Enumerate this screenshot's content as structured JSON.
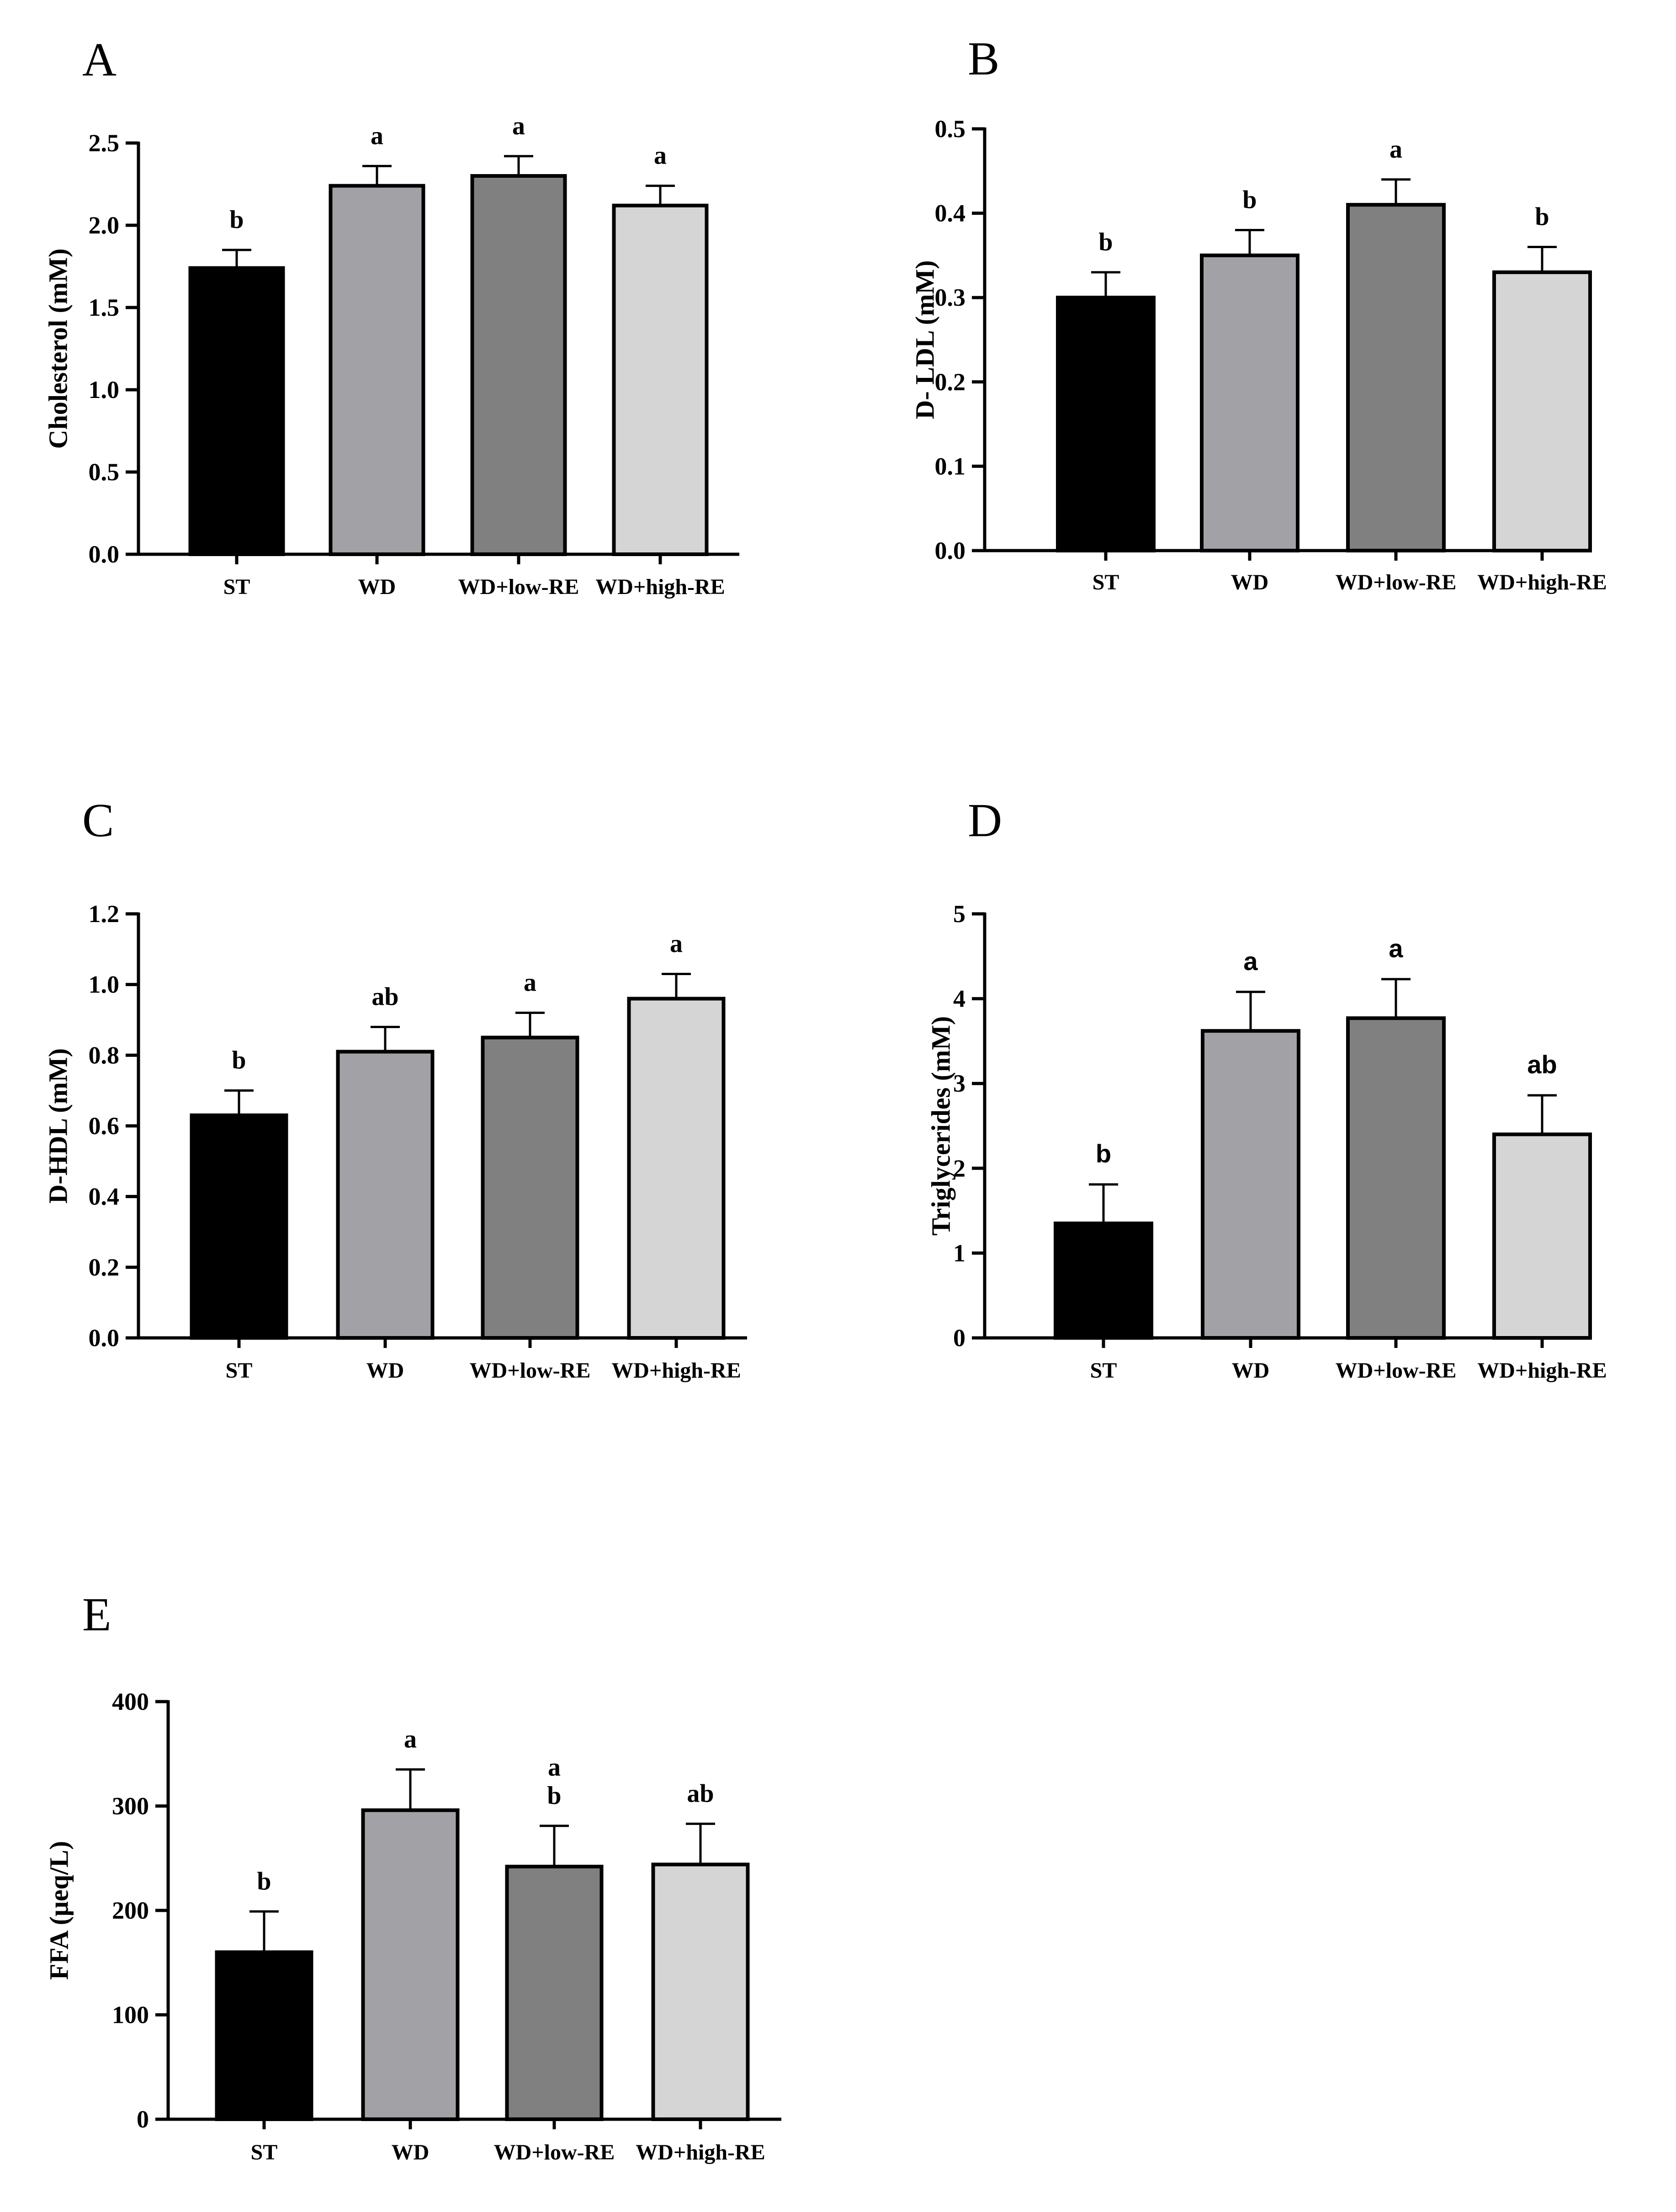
{
  "figure": {
    "colors": {
      "ST": "#000000",
      "WD": "#a2a1a6",
      "WD+low-RE": "#808080",
      "WD+high-RE": "#d5d5d5"
    }
  },
  "chart_data": [
    {
      "id": "A",
      "panel": "A",
      "type": "bar",
      "categories": [
        "ST",
        "WD",
        "WD+low-RE",
        "WD+high-RE"
      ],
      "values": [
        1.74,
        2.24,
        2.3,
        2.12
      ],
      "errors": [
        0.11,
        0.12,
        0.12,
        0.12
      ],
      "significance": [
        "b",
        "a",
        "a",
        "a"
      ],
      "ylabel": "Cholesterol (mM)",
      "ylim": [
        0,
        2.5
      ],
      "yticks": [
        0,
        0.5,
        1.0,
        1.5,
        2.0,
        2.5
      ],
      "ytick_labels": [
        "0.0",
        "0.5",
        "1.0",
        "1.5",
        "2.0",
        "2.5"
      ],
      "sig_font": "serif"
    },
    {
      "id": "B",
      "panel": "B",
      "type": "bar",
      "categories": [
        "ST",
        "WD",
        "WD+low-RE",
        "WD+high-RE"
      ],
      "values": [
        0.3,
        0.35,
        0.41,
        0.33
      ],
      "errors": [
        0.03,
        0.03,
        0.03,
        0.03
      ],
      "significance": [
        "b",
        "b",
        "a",
        "b"
      ],
      "ylabel": "D- LDL (mM)",
      "ylim": [
        0,
        0.5
      ],
      "yticks": [
        0,
        0.1,
        0.2,
        0.3,
        0.4,
        0.5
      ],
      "ytick_labels": [
        "0.0",
        "0.1",
        "0.2",
        "0.3",
        "0.4",
        "0.5"
      ],
      "sig_font": "serif"
    },
    {
      "id": "C",
      "panel": "C",
      "type": "bar",
      "categories": [
        "ST",
        "WD",
        "WD+low-RE",
        "WD+high-RE"
      ],
      "values": [
        0.63,
        0.81,
        0.85,
        0.96
      ],
      "errors": [
        0.07,
        0.07,
        0.07,
        0.07
      ],
      "significance": [
        "b",
        "ab",
        "a",
        "a"
      ],
      "ylabel": "D-HDL (mM)",
      "ylim": [
        0,
        1.2
      ],
      "yticks": [
        0,
        0.2,
        0.4,
        0.6,
        0.8,
        1.0,
        1.2
      ],
      "ytick_labels": [
        "0.0",
        "0.2",
        "0.4",
        "0.6",
        "0.8",
        "1.0",
        "1.2"
      ],
      "sig_font": "serif"
    },
    {
      "id": "D",
      "panel": "D",
      "type": "bar",
      "categories": [
        "ST",
        "WD",
        "WD+low-RE",
        "WD+high-RE"
      ],
      "values": [
        1.35,
        3.62,
        3.77,
        2.4
      ],
      "errors": [
        0.46,
        0.46,
        0.46,
        0.46
      ],
      "significance": [
        "b",
        "a",
        "a",
        "ab"
      ],
      "ylabel": "Triglycerides (mM)",
      "ylim": [
        0,
        5
      ],
      "yticks": [
        0,
        1,
        2,
        3,
        4,
        5
      ],
      "ytick_labels": [
        "0",
        "1",
        "2",
        "3",
        "4",
        "5"
      ],
      "sig_font": "sans"
    },
    {
      "id": "E",
      "panel": "E",
      "type": "bar",
      "categories": [
        "ST",
        "WD",
        "WD+low-RE",
        "WD+high-RE"
      ],
      "values": [
        160,
        296,
        242,
        244
      ],
      "errors": [
        39,
        39,
        39,
        39
      ],
      "significance": [
        "b",
        "a",
        "a\nb",
        "ab"
      ],
      "ylabel": "FFA (μeq/L)",
      "ylim": [
        0,
        400
      ],
      "yticks": [
        0,
        100,
        200,
        300,
        400
      ],
      "ytick_labels": [
        "0",
        "100",
        "200",
        "300",
        "400"
      ],
      "sig_font": "serif"
    }
  ]
}
